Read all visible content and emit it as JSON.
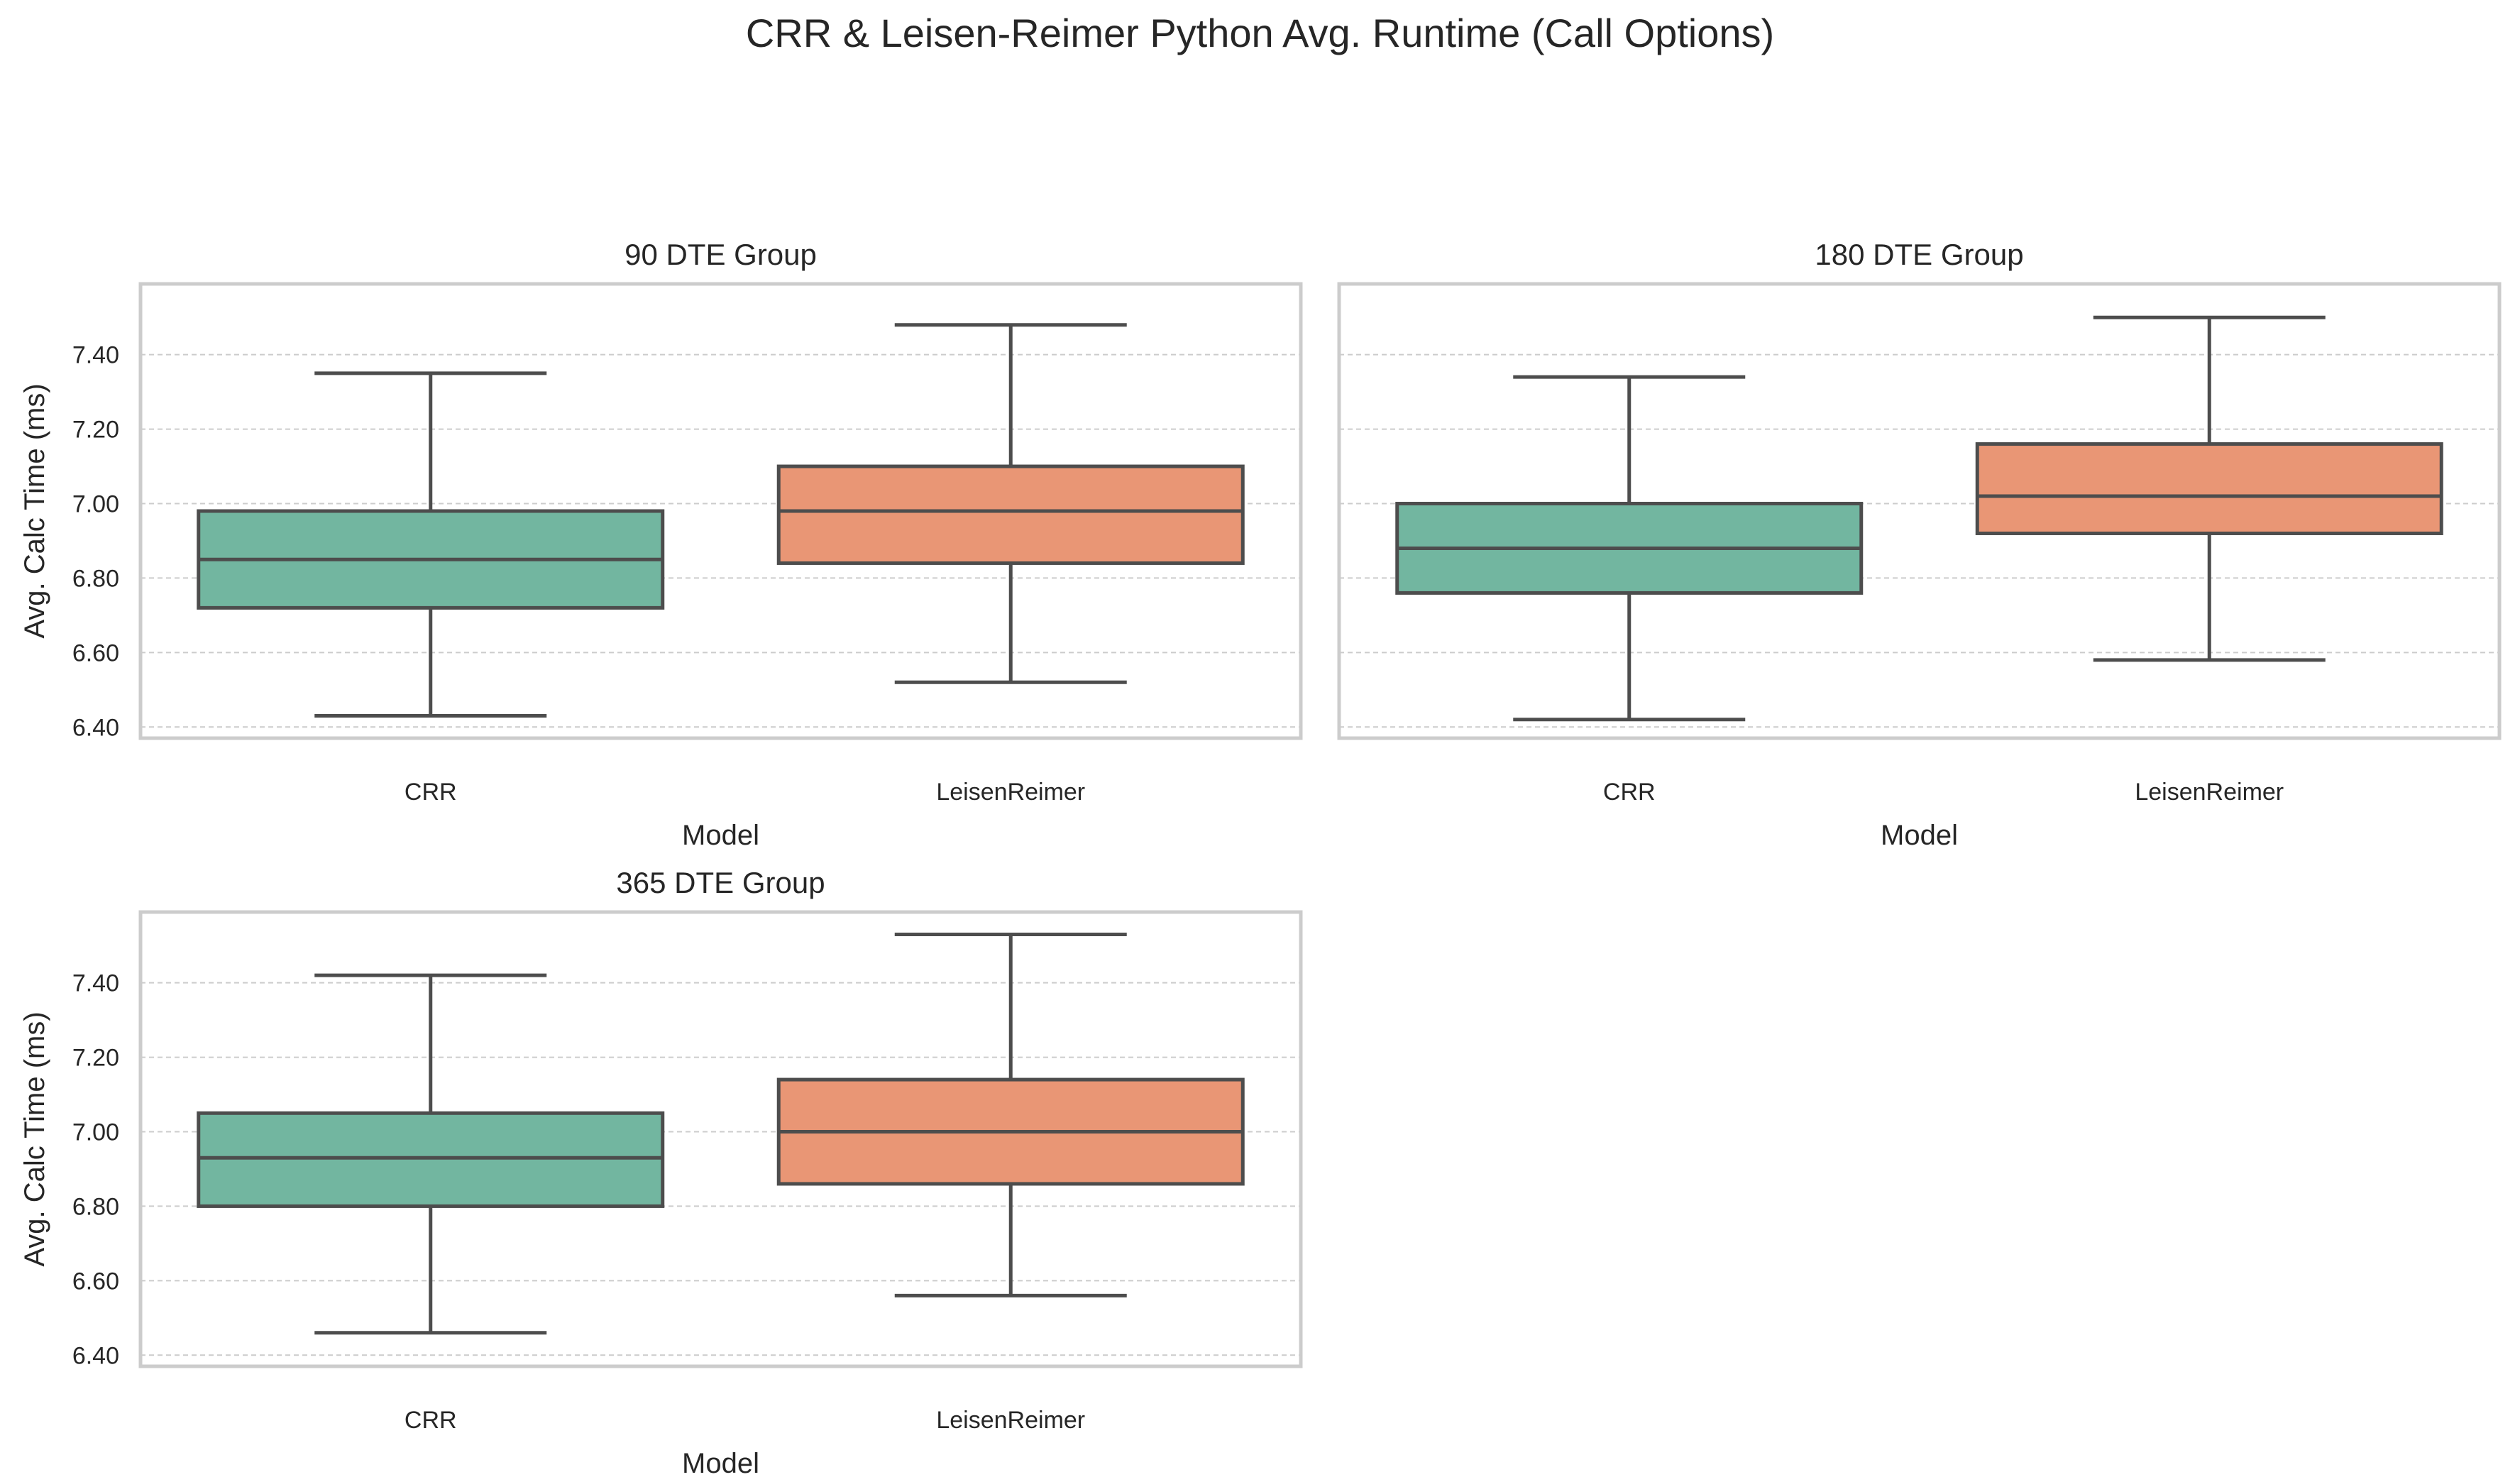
{
  "figure": {
    "title": "CRR & Leisen-Reimer Python Avg. Runtime (Call Options)"
  },
  "colors": {
    "CRR": "#72b6a0",
    "LeisenReimer": "#e99675",
    "edge": "#4d4d4d",
    "frame": "#cccccc",
    "grid": "#cccccc"
  },
  "chart_data": [
    {
      "type": "box",
      "title": "90 DTE Group",
      "xlabel": "Model",
      "ylabel": "Avg. Calc Time (ms)",
      "categories": [
        "CRR",
        "LeisenReimer"
      ],
      "y_ticks": [
        "6.40",
        "6.60",
        "6.80",
        "7.00",
        "7.20",
        "7.40"
      ],
      "ylim": [
        6.37,
        7.59
      ],
      "grid": true,
      "boxes": [
        {
          "category": "CRR",
          "whisker_low": 6.43,
          "q1": 6.72,
          "median": 6.85,
          "q3": 6.98,
          "whisker_high": 7.35
        },
        {
          "category": "LeisenReimer",
          "whisker_low": 6.52,
          "q1": 6.84,
          "median": 6.98,
          "q3": 7.1,
          "whisker_high": 7.48
        }
      ]
    },
    {
      "type": "box",
      "title": "180 DTE Group",
      "xlabel": "Model",
      "ylabel": "",
      "categories": [
        "CRR",
        "LeisenReimer"
      ],
      "y_ticks": [],
      "ylim": [
        6.37,
        7.59
      ],
      "grid": true,
      "boxes": [
        {
          "category": "CRR",
          "whisker_low": 6.42,
          "q1": 6.76,
          "median": 6.88,
          "q3": 7.0,
          "whisker_high": 7.34
        },
        {
          "category": "LeisenReimer",
          "whisker_low": 6.58,
          "q1": 6.92,
          "median": 7.02,
          "q3": 7.16,
          "whisker_high": 7.5
        }
      ]
    },
    {
      "type": "box",
      "title": "365 DTE Group",
      "xlabel": "Model",
      "ylabel": "Avg. Calc Time (ms)",
      "categories": [
        "CRR",
        "LeisenReimer"
      ],
      "y_ticks": [
        "6.40",
        "6.60",
        "6.80",
        "7.00",
        "7.20",
        "7.40"
      ],
      "ylim": [
        6.37,
        7.59
      ],
      "grid": true,
      "boxes": [
        {
          "category": "CRR",
          "whisker_low": 6.46,
          "q1": 6.8,
          "median": 6.93,
          "q3": 7.05,
          "whisker_high": 7.42
        },
        {
          "category": "LeisenReimer",
          "whisker_low": 6.56,
          "q1": 6.86,
          "median": 7.0,
          "q3": 7.14,
          "whisker_high": 7.53
        }
      ]
    }
  ]
}
